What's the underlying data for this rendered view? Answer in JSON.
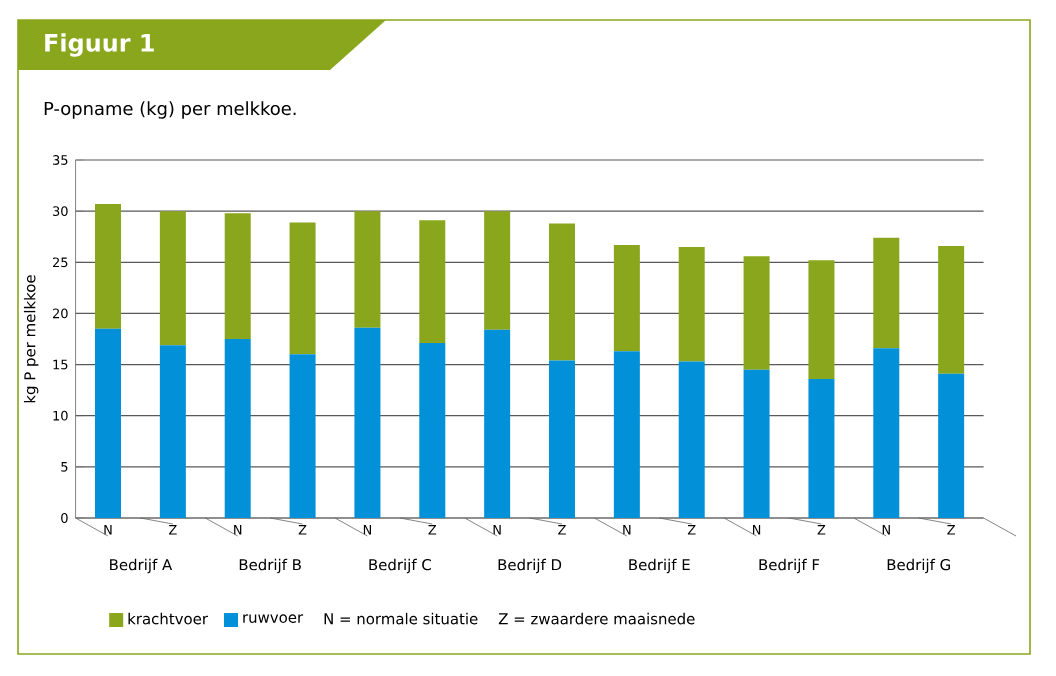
{
  "chart_data": {
    "type": "bar",
    "title": "Figuur 1",
    "subtitle": "P-opname (kg) per melkkoe.",
    "ylabel": "kg P per melkkoe",
    "categories": [
      "N",
      "Z",
      "N",
      "Z",
      "N",
      "Z",
      "N",
      "Z",
      "N",
      "Z",
      "N",
      "Z",
      "N",
      "Z"
    ],
    "stacked": true,
    "series": [
      {
        "name": "ruwvoer",
        "color": "#0291d8",
        "values": [
          18.5,
          16.9,
          17.5,
          16.0,
          18.6,
          17.1,
          18.4,
          15.4,
          16.3,
          15.3,
          14.5,
          13.6,
          16.6,
          14.1
        ]
      },
      {
        "name": "krachtvoer",
        "color": "#8aa61c",
        "values": [
          12.2,
          13.1,
          12.3,
          12.9,
          11.4,
          12.0,
          11.6,
          13.4,
          10.4,
          11.2,
          11.1,
          11.6,
          10.8,
          12.5
        ]
      }
    ],
    "annotations": [
      "Bedrijf A",
      "Bedrijf B",
      "Bedrijf C",
      "Bedrijf D",
      "Bedrijf E",
      "Bedrijf F",
      "Bedrijf G",
      "N = normale situatie",
      "Z = zwaardere maaisnede"
    ],
    "ylim": [
      0,
      35
    ],
    "yticks": [
      0,
      5,
      10,
      15,
      20,
      25,
      30,
      35
    ],
    "grid": "y",
    "legend": "bottom"
  }
}
